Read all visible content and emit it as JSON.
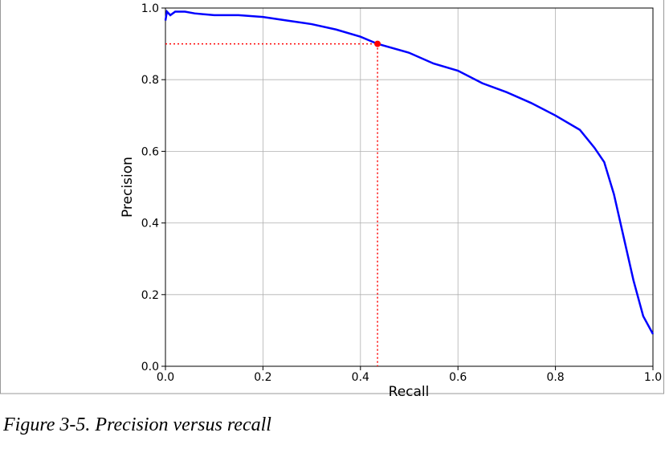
{
  "chart_data": {
    "type": "line",
    "x_label": "Recall",
    "y_label": "Precision",
    "caption": "Figure 3-5. Precision versus recall",
    "color": "#0000ff",
    "x": [
      0,
      0.003,
      0.01,
      0.02,
      0.04,
      0.06,
      0.1,
      0.15,
      0.2,
      0.25,
      0.3,
      0.35,
      0.4,
      0.435,
      0.5,
      0.55,
      0.6,
      0.65,
      0.7,
      0.75,
      0.8,
      0.85,
      0.88,
      0.9,
      0.92,
      0.94,
      0.96,
      0.98,
      1.0
    ],
    "values": [
      0.965,
      0.99,
      0.98,
      0.99,
      0.99,
      0.985,
      0.98,
      0.98,
      0.975,
      0.965,
      0.955,
      0.94,
      0.92,
      0.9,
      0.875,
      0.845,
      0.825,
      0.79,
      0.765,
      0.735,
      0.7,
      0.66,
      0.61,
      0.57,
      0.48,
      0.36,
      0.24,
      0.14,
      0.09
    ],
    "marker": {
      "x": 0.435,
      "y": 0.9,
      "color": "#ff0000"
    },
    "xlim": [
      0,
      1
    ],
    "ylim": [
      0,
      1
    ],
    "xticks": [
      {
        "value": 0,
        "label": "0.0"
      },
      0.2,
      0.4,
      0.6,
      0.8,
      {
        "value": 1,
        "label": "1.0"
      }
    ],
    "yticks": [
      {
        "value": 0,
        "label": "0.0"
      },
      0.2,
      0.4,
      0.6,
      0.8,
      {
        "value": 1,
        "label": "1.0"
      }
    ],
    "grid": true
  }
}
